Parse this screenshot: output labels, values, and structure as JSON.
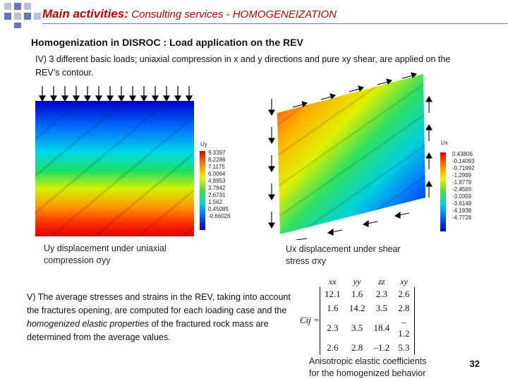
{
  "header": {
    "title_main": "Main activities:",
    "title_rest": "Consulting services - HOMOGENEIZATION"
  },
  "subtitle": "Homogenization in DISROC : Load application on the REV",
  "section_iv": "IV)  3 different basic loads; uniaxial compression in x and y directions and pure xy shear, are applied on the REV’s contour.",
  "left_plot": {
    "legend_title": "Uy",
    "legend_values": [
      "9.3397",
      "8.2286",
      "7.1175",
      "6.0064",
      "4.8953",
      "3.7842",
      "2.6731",
      "1.562",
      "0.45085",
      "-0.66026"
    ],
    "caption_line1": "Uy displacement under uniaxial",
    "caption_line2": "compression σyy"
  },
  "right_plot": {
    "legend_title": "Ux",
    "legend_values": [
      "0.43806",
      "-0.14093",
      "-0.71992",
      "-1.2989",
      "-1.8779",
      "-2.4569",
      "-3.0359",
      "-3.6149",
      "-4.1938",
      "-4.7728"
    ],
    "caption_line1": "Ux displacement under shear",
    "caption_line2": "stress σxy"
  },
  "section_v": {
    "text_before": "V) The average stresses and strains in the REV, taking into account the fractures opening, are computed for each loading case and the ",
    "text_italic": "homogenized elastic properties",
    "text_after": " of the fractured rock mass are determined from the average values."
  },
  "matrix": {
    "symbol": "Cij =",
    "headers": [
      "xx",
      "yy",
      "zz",
      "xy"
    ],
    "rows": [
      [
        "12.1",
        "1.6",
        "2.3",
        "2.6"
      ],
      [
        "1.6",
        "14.2",
        "3.5",
        "2.8"
      ],
      [
        "2.3",
        "3.5",
        "18.4",
        "–1.2"
      ],
      [
        "2.6",
        "2.8",
        "–1.2",
        "5.3"
      ]
    ],
    "caption_line1": "Anisotropic elastic coefficients",
    "caption_line2": "for the homogenized behavior"
  },
  "page_number": "32"
}
